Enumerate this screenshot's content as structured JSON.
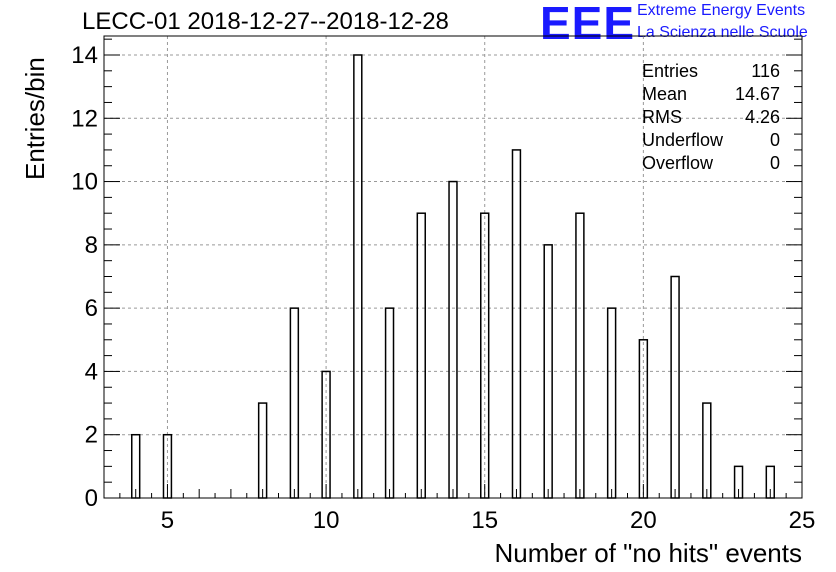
{
  "title": "LECC-01 2018-12-27--2018-12-28",
  "logo": {
    "letters": "EEE",
    "line1": "Extreme Energy Events",
    "line2": "La Scienza nelle Scuole",
    "color": "#1a1aff"
  },
  "stats": [
    {
      "label": "Entries",
      "value": "116"
    },
    {
      "label": "Mean",
      "value": "14.67"
    },
    {
      "label": "RMS",
      "value": "4.26"
    },
    {
      "label": "Underflow",
      "value": "0"
    },
    {
      "label": "Overflow",
      "value": "0"
    }
  ],
  "chart_data": {
    "type": "bar",
    "xlabel": "Number of \"no hits\" events",
    "ylabel": "Entries/bin",
    "xlim": [
      3,
      25
    ],
    "ylim": [
      0,
      14.6
    ],
    "xticks": [
      5,
      10,
      15,
      20,
      25
    ],
    "yticks": [
      0,
      2,
      4,
      6,
      8,
      10,
      12,
      14
    ],
    "grid": true,
    "bins": [
      {
        "x": 4,
        "count": 2
      },
      {
        "x": 5,
        "count": 2
      },
      {
        "x": 8,
        "count": 3
      },
      {
        "x": 9,
        "count": 6
      },
      {
        "x": 10,
        "count": 4
      },
      {
        "x": 11,
        "count": 14
      },
      {
        "x": 12,
        "count": 6
      },
      {
        "x": 13,
        "count": 9
      },
      {
        "x": 14,
        "count": 10
      },
      {
        "x": 15,
        "count": 9
      },
      {
        "x": 16,
        "count": 11
      },
      {
        "x": 17,
        "count": 8
      },
      {
        "x": 18,
        "count": 9
      },
      {
        "x": 19,
        "count": 6
      },
      {
        "x": 20,
        "count": 5
      },
      {
        "x": 21,
        "count": 7
      },
      {
        "x": 22,
        "count": 3
      },
      {
        "x": 23,
        "count": 1
      },
      {
        "x": 24,
        "count": 1
      }
    ]
  }
}
